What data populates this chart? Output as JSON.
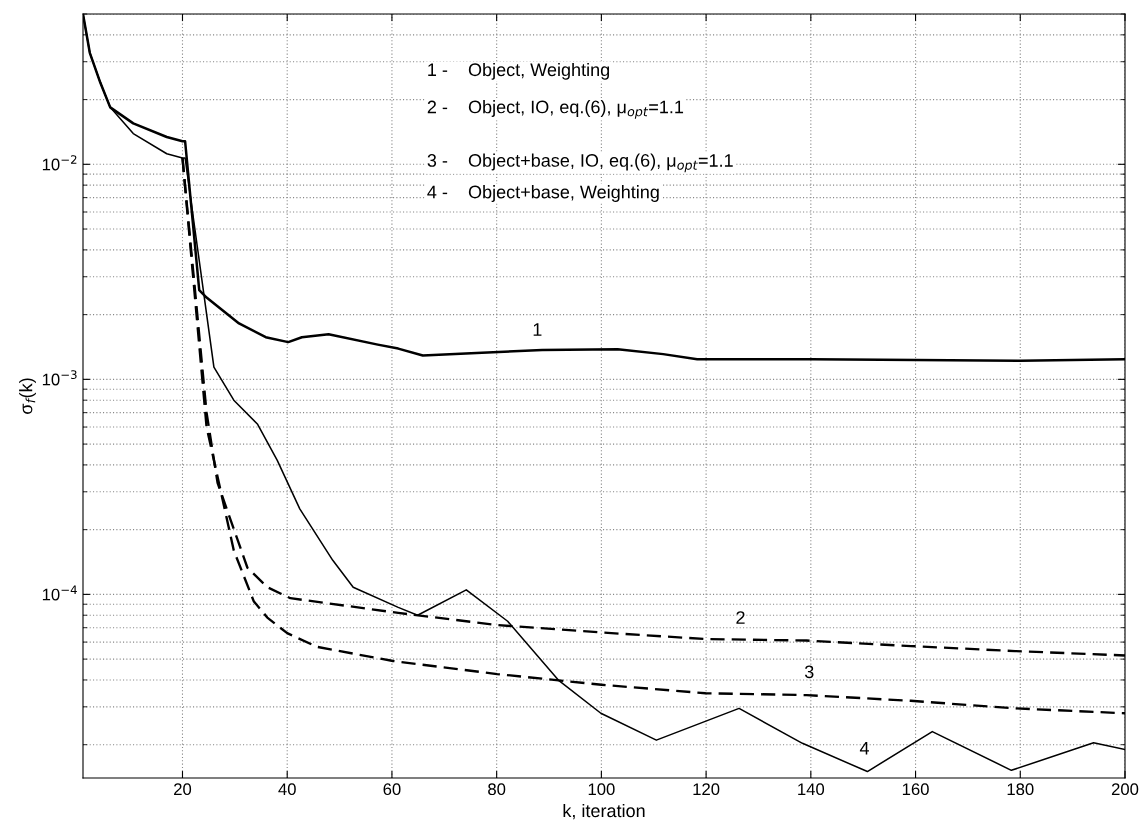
{
  "chart_data": {
    "type": "line",
    "xlabel": "k, iteration",
    "ylabel": "σ$_{f}$(k)",
    "log": "y",
    "grid": true,
    "legend": false,
    "marker": "none",
    "xlim": [
      1,
      200
    ],
    "xticks": [
      20,
      40,
      60,
      80,
      100,
      120,
      140,
      160,
      180,
      200
    ],
    "ylim": [
      1.4e-05,
      0.05
    ],
    "yticks": [
      {
        "value": 0.0001,
        "label": "10$^{−4}$"
      },
      {
        "value": 0.001,
        "label": "10$^{−3}$"
      },
      {
        "value": 0.01,
        "label": "10$^{−2}$"
      }
    ],
    "series": [
      {
        "color": "#000000",
        "line_style": "solid",
        "x": [
          1,
          2.3,
          4.3,
          6.2,
          10.6,
          17,
          20,
          20.5,
          23.2,
          24.6,
          30.8,
          35.9,
          40.2,
          42.8,
          47.9,
          57.3,
          61.2,
          65.9,
          77.2,
          88.7,
          103.1,
          111.8,
          118.3,
          140,
          160,
          180,
          200
        ],
        "values": [
          0.05,
          0.033,
          0.024,
          0.0184,
          0.0155,
          0.0134,
          0.0128,
          0.0128,
          0.0026,
          0.0024,
          0.00182,
          0.00157,
          0.00149,
          0.00157,
          0.00162,
          0.00145,
          0.00139,
          0.00129,
          0.00133,
          0.00137,
          0.00138,
          0.00131,
          0.00124,
          0.00124,
          0.00123,
          0.00122,
          0.00124
        ]
      },
      {
        "color": "#000000",
        "line_style": "dashed",
        "x": [
          20,
          24.6,
          26.7,
          32.4,
          36.2,
          40.6,
          61.2,
          80.1,
          100,
          119.9,
          139.2,
          159.1,
          179,
          200
        ],
        "values": [
          0.0107,
          0.0007,
          0.00033,
          0.000133,
          0.000108,
          9.6e-05,
          8.2e-05,
          7.2e-05,
          6.65e-05,
          6.2e-05,
          6.1e-05,
          5.75e-05,
          5.45e-05,
          5.2e-05
        ]
      },
      {
        "color": "#000000",
        "line_style": "dashed",
        "x": [
          20,
          24.6,
          29.8,
          33.6,
          36.2,
          40,
          45.7,
          60.2,
          80.1,
          100,
          119.9,
          139.2,
          159.1,
          179,
          200
        ],
        "values": [
          0.0107,
          0.0006,
          0.00016,
          9.3e-05,
          7.8e-05,
          6.6e-05,
          5.7e-05,
          4.9e-05,
          4.26e-05,
          3.8e-05,
          3.47e-05,
          3.4e-05,
          3.2e-05,
          2.95e-05,
          2.8e-05
        ]
      },
      {
        "color": "#000000",
        "line_style": "solid",
        "x": [
          1,
          2.3,
          4.3,
          6.2,
          10.6,
          17,
          20,
          20.5,
          26,
          29.8,
          34.3,
          38.1,
          42.4,
          48.7,
          52.6,
          61.2,
          64.9,
          74.2,
          82.1,
          91.9,
          99.9,
          110.5,
          126.3,
          138.4,
          150.8,
          163.2,
          178.3,
          194,
          200
        ],
        "values": [
          0.05,
          0.033,
          0.024,
          0.0184,
          0.0139,
          0.0112,
          0.0107,
          0.0107,
          0.00114,
          0.0008,
          0.00062,
          0.00042,
          0.00025,
          0.000144,
          0.000108,
          8.7e-05,
          8e-05,
          0.000105,
          7.5e-05,
          3.97e-05,
          2.8e-05,
          2.1e-05,
          2.95e-05,
          2.03e-05,
          1.5e-05,
          2.3e-05,
          1.52e-05,
          2.04e-05,
          1.9e-05
        ]
      }
    ],
    "annotations": [
      "1 -    Object, Weighting",
      "2 -    Object, IO, eq.(6), μ$_{opt}$=1.1",
      "3 -    Object+base, IO, eq.(6), μ$_{opt}$=1.1",
      "4 -    Object+base, Weighting",
      "1",
      "2",
      "3",
      "4"
    ]
  }
}
